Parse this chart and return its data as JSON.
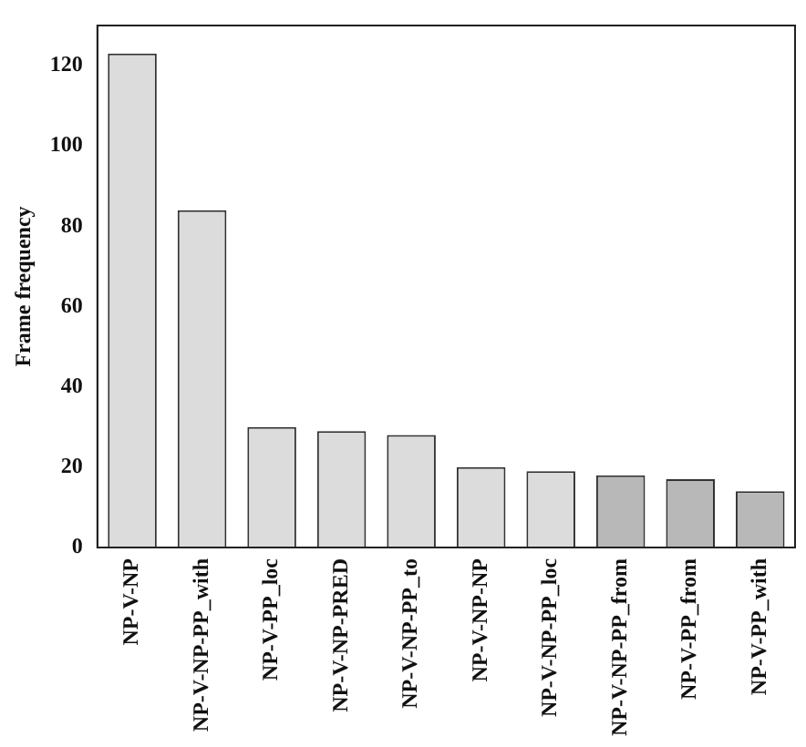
{
  "chart_data": {
    "type": "bar",
    "ylabel": "Frame frequency",
    "categories": [
      "NP-V-NP",
      "NP-V-NP-PP_with",
      "NP-V-PP_loc",
      "NP-V-NP-PRED",
      "NP-V-NP-PP_to",
      "NP-V-NP-NP",
      "NP-V-NP-PP_loc",
      "NP-V-NP-PP_from",
      "NP-V-PP_from",
      "NP-V-PP_with"
    ],
    "values": [
      123,
      84,
      30,
      29,
      28,
      20,
      19,
      18,
      17,
      14
    ],
    "colors": [
      "#dcdcdc",
      "#dcdcdc",
      "#dcdcdc",
      "#dcdcdc",
      "#dcdcdc",
      "#dcdcdc",
      "#dcdcdc",
      "#b8b8b8",
      "#b8b8b8",
      "#b8b8b8"
    ],
    "ylim": [
      0,
      130
    ],
    "yticks": [
      0,
      20,
      40,
      60,
      80,
      100,
      120
    ],
    "grid": false,
    "legend": false
  }
}
